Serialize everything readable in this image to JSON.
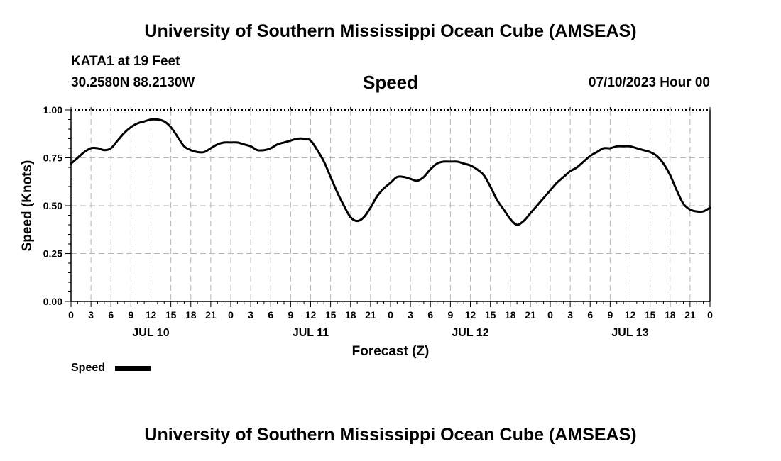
{
  "header": {
    "title": "University of Southern Mississippi Ocean Cube (AMSEAS)",
    "station": "KATA1 at 19 Feet",
    "coordinates": "30.2580N  88.2130W",
    "panel_title": "Speed",
    "datetime": "07/10/2023 Hour 00"
  },
  "footer": {
    "title": "University of Southern Mississippi Ocean Cube (AMSEAS)"
  },
  "legend": {
    "label": "Speed",
    "color": "#000000"
  },
  "chart_data": {
    "type": "line",
    "title": "Speed",
    "xlabel": "Forecast (Z)",
    "ylabel": "Speed (Knots)",
    "ylim": [
      0,
      1.0
    ],
    "xlim": [
      0,
      96
    ],
    "grid": true,
    "y_ticks": [
      "0.00",
      "0.25",
      "0.50",
      "0.75",
      "1.00"
    ],
    "x_tick_labels": [
      "0",
      "3",
      "6",
      "9",
      "12",
      "15",
      "18",
      "21",
      "0",
      "3",
      "6",
      "9",
      "12",
      "15",
      "18",
      "21",
      "0",
      "3",
      "6",
      "9",
      "12",
      "15",
      "18",
      "21",
      "0",
      "3",
      "6",
      "9",
      "12",
      "15",
      "18",
      "21",
      "0"
    ],
    "day_labels": [
      {
        "label": "JUL 10",
        "hour": 12
      },
      {
        "label": "JUL 11",
        "hour": 36
      },
      {
        "label": "JUL 12",
        "hour": 60
      },
      {
        "label": "JUL 13",
        "hour": 84
      }
    ],
    "series": [
      {
        "name": "Speed",
        "x": [
          0,
          1,
          2,
          3,
          4,
          5,
          6,
          7,
          8,
          9,
          10,
          11,
          12,
          13,
          14,
          15,
          16,
          17,
          18,
          19,
          20,
          21,
          22,
          23,
          24,
          25,
          26,
          27,
          28,
          29,
          30,
          31,
          32,
          33,
          34,
          35,
          36,
          37,
          38,
          39,
          40,
          41,
          42,
          43,
          44,
          45,
          46,
          47,
          48,
          49,
          50,
          51,
          52,
          53,
          54,
          55,
          56,
          57,
          58,
          59,
          60,
          61,
          62,
          63,
          64,
          65,
          66,
          67,
          68,
          69,
          70,
          71,
          72,
          73,
          74,
          75,
          76,
          77,
          78,
          79,
          80,
          81,
          82,
          83,
          84,
          85,
          86,
          87,
          88,
          89,
          90,
          91,
          92,
          93,
          94,
          95,
          96
        ],
        "values": [
          0.72,
          0.75,
          0.78,
          0.8,
          0.8,
          0.79,
          0.8,
          0.84,
          0.88,
          0.91,
          0.93,
          0.94,
          0.95,
          0.95,
          0.94,
          0.91,
          0.86,
          0.81,
          0.79,
          0.78,
          0.78,
          0.8,
          0.82,
          0.83,
          0.83,
          0.83,
          0.82,
          0.81,
          0.79,
          0.79,
          0.8,
          0.82,
          0.83,
          0.84,
          0.85,
          0.85,
          0.84,
          0.79,
          0.73,
          0.65,
          0.57,
          0.5,
          0.44,
          0.42,
          0.44,
          0.49,
          0.55,
          0.59,
          0.62,
          0.65,
          0.65,
          0.64,
          0.63,
          0.65,
          0.69,
          0.72,
          0.73,
          0.73,
          0.73,
          0.72,
          0.71,
          0.69,
          0.66,
          0.6,
          0.53,
          0.48,
          0.43,
          0.4,
          0.42,
          0.46,
          0.5,
          0.54,
          0.58,
          0.62,
          0.65,
          0.68,
          0.7,
          0.73,
          0.76,
          0.78,
          0.8,
          0.8,
          0.81,
          0.81,
          0.81,
          0.8,
          0.79,
          0.78,
          0.76,
          0.72,
          0.66,
          0.58,
          0.51,
          0.48,
          0.47,
          0.47,
          0.49
        ]
      }
    ]
  }
}
